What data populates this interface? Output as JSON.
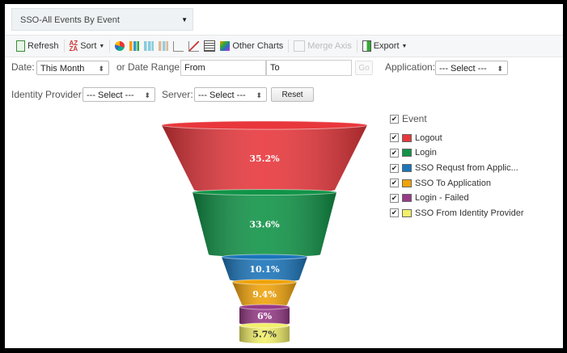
{
  "report_select": {
    "value": "SSO-All Events By Event"
  },
  "toolbar": {
    "refresh": "Refresh",
    "sort": "Sort",
    "other_charts": "Other Charts",
    "merge_axis": "Merge Axis",
    "export": "Export"
  },
  "filters": {
    "date_label": "Date:",
    "date_value": "This Month",
    "range_label": "or Date Range:",
    "from_placeholder": "From",
    "to_placeholder": "To",
    "go": "Go",
    "application_label": "Application:",
    "application_value": "--- Select ---",
    "idp_label": "Identity Provider:",
    "idp_value": "--- Select ---",
    "server_label": "Server:",
    "server_value": "--- Select ---",
    "reset": "Reset"
  },
  "chart_data": {
    "type": "funnel",
    "legend_title": "Event",
    "legend_placement": "right",
    "categories": [
      "Logout",
      "Login",
      "SSO Requst from Applic...",
      "SSO To Application",
      "Login - Failed",
      "SSO From Identity Provider"
    ],
    "values": [
      35.2,
      33.6,
      10.1,
      9.4,
      6,
      5.7
    ],
    "labels": [
      "35.2%",
      "33.6%",
      "10.1%",
      "9.4%",
      "6%",
      "5.7%"
    ],
    "colors": [
      "#e8373c",
      "#109447",
      "#1b75bb",
      "#f0a30a",
      "#973b87",
      "#f2f06a"
    ]
  }
}
